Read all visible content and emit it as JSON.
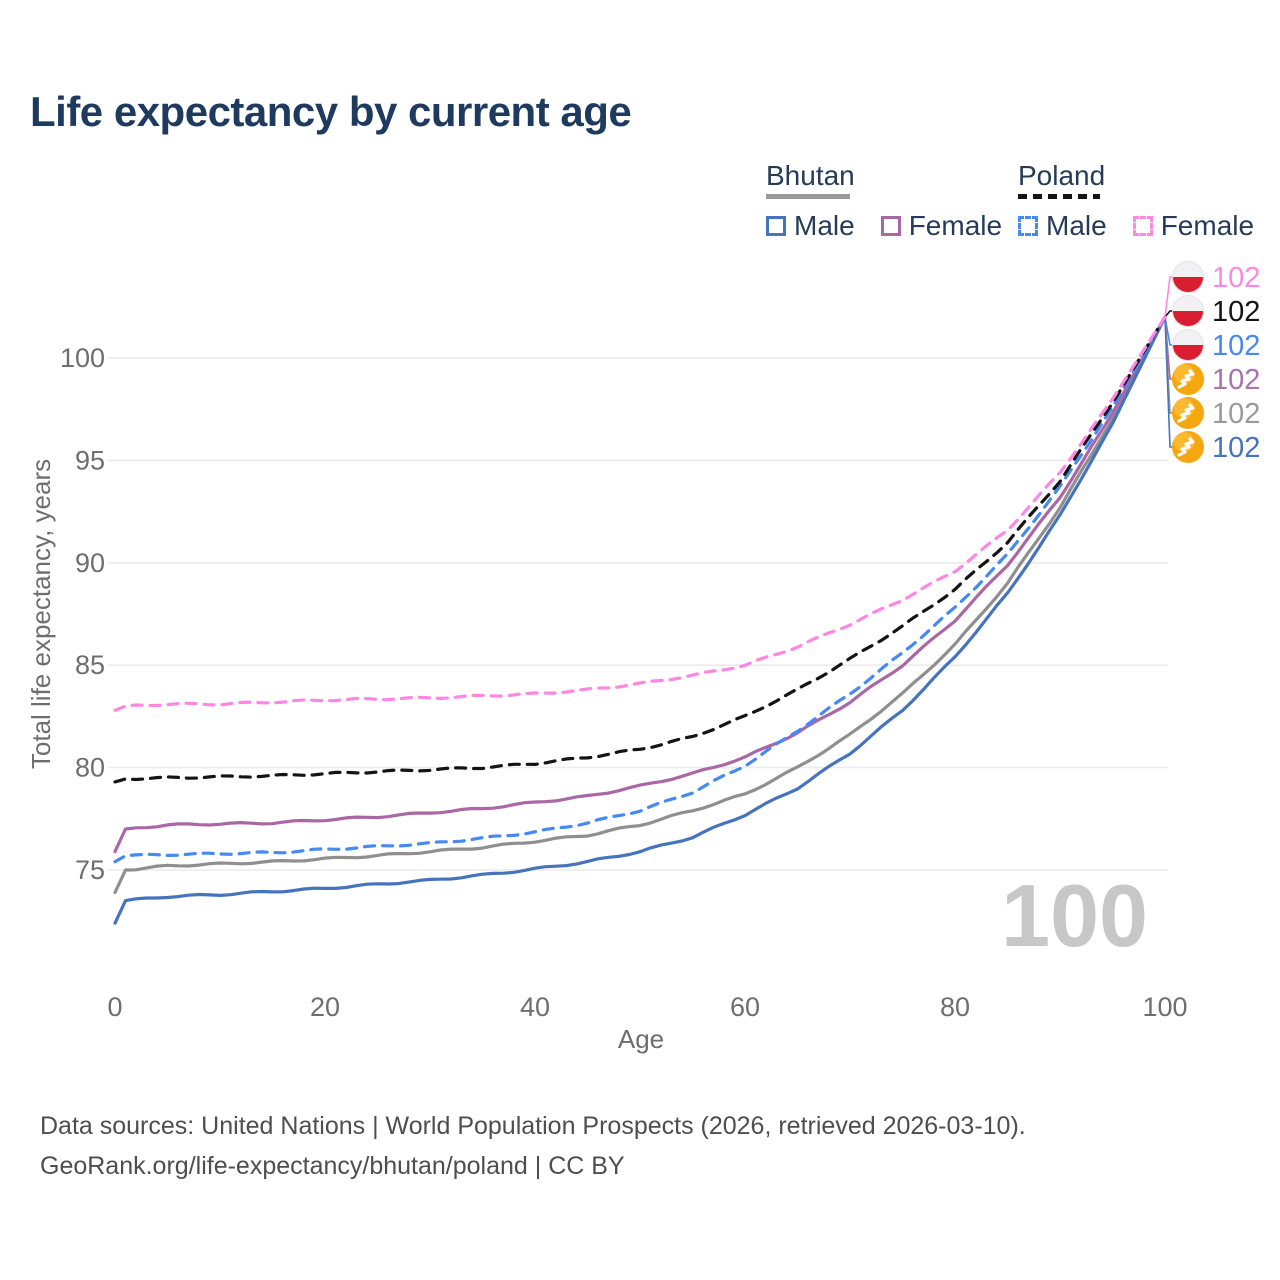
{
  "title": "Life expectancy by current age",
  "legend": {
    "groups": [
      {
        "label": "Bhutan",
        "style": "solid",
        "items": [
          {
            "label": "Male",
            "color": "#4673bd"
          },
          {
            "label": "Female",
            "color": "#ab67a5"
          }
        ]
      },
      {
        "label": "Poland",
        "style": "dashed",
        "items": [
          {
            "label": "Male",
            "color": "#4589f5"
          },
          {
            "label": "Female",
            "color": "#ff87e3"
          }
        ]
      }
    ]
  },
  "watermark": "100",
  "footer": {
    "line1": "Data sources: United Nations | World Population Prospects (2026, retrieved 2026-03-10).",
    "line2": "GeoRank.org/life-expectancy/bhutan/poland | CC BY"
  },
  "chart_data": {
    "type": "line",
    "title": "Life expectancy by current age",
    "xlabel": "Age",
    "ylabel": "Total life expectancy, years",
    "x_ticks": [
      0,
      20,
      40,
      60,
      80,
      100
    ],
    "y_ticks": [
      75,
      80,
      85,
      90,
      95,
      100
    ],
    "xlim": [
      0,
      100
    ],
    "ylim": [
      71.5,
      103.5
    ],
    "grid": true,
    "legend_position": "top-right",
    "series": [
      {
        "name": "Poland Female",
        "country": "poland",
        "sex": "female",
        "flag": "poland",
        "color": "#ff87e3",
        "dashed": true,
        "end_label": "102",
        "end_label_color": "#ff87e3",
        "points": [
          [
            0,
            82.8
          ],
          [
            1,
            83.0
          ],
          [
            5,
            83.1
          ],
          [
            10,
            83.1
          ],
          [
            15,
            83.2
          ],
          [
            20,
            83.3
          ],
          [
            25,
            83.35
          ],
          [
            30,
            83.4
          ],
          [
            35,
            83.5
          ],
          [
            40,
            83.6
          ],
          [
            45,
            83.8
          ],
          [
            50,
            84.1
          ],
          [
            55,
            84.5
          ],
          [
            60,
            85.0
          ],
          [
            65,
            85.9
          ],
          [
            70,
            87.0
          ],
          [
            75,
            88.2
          ],
          [
            80,
            89.6
          ],
          [
            85,
            91.6
          ],
          [
            90,
            94.4
          ],
          [
            95,
            98.0
          ],
          [
            100,
            102
          ]
        ]
      },
      {
        "name": "Poland Total",
        "country": "poland",
        "sex": "total",
        "flag": "poland",
        "color": "#141414",
        "dashed": true,
        "end_label": "102",
        "end_label_color": "#141414",
        "points": [
          [
            0,
            79.3
          ],
          [
            1,
            79.45
          ],
          [
            5,
            79.5
          ],
          [
            10,
            79.55
          ],
          [
            15,
            79.6
          ],
          [
            20,
            79.7
          ],
          [
            25,
            79.8
          ],
          [
            30,
            79.9
          ],
          [
            35,
            80.0
          ],
          [
            40,
            80.2
          ],
          [
            45,
            80.5
          ],
          [
            50,
            80.9
          ],
          [
            55,
            81.5
          ],
          [
            60,
            82.5
          ],
          [
            65,
            83.8
          ],
          [
            70,
            85.3
          ],
          [
            75,
            86.9
          ],
          [
            80,
            88.7
          ],
          [
            85,
            91.0
          ],
          [
            90,
            94.0
          ],
          [
            95,
            97.8
          ],
          [
            100,
            102
          ]
        ]
      },
      {
        "name": "Poland Male",
        "country": "poland",
        "sex": "male",
        "flag": "poland",
        "color": "#4589f5",
        "dashed": true,
        "end_label": "102",
        "end_label_color": "#4589f5",
        "points": [
          [
            0,
            75.4
          ],
          [
            1,
            75.7
          ],
          [
            5,
            75.75
          ],
          [
            10,
            75.8
          ],
          [
            15,
            75.85
          ],
          [
            20,
            76.0
          ],
          [
            25,
            76.15
          ],
          [
            30,
            76.3
          ],
          [
            35,
            76.55
          ],
          [
            40,
            76.85
          ],
          [
            45,
            77.3
          ],
          [
            50,
            77.9
          ],
          [
            55,
            78.8
          ],
          [
            60,
            80.1
          ],
          [
            65,
            81.8
          ],
          [
            70,
            83.6
          ],
          [
            75,
            85.6
          ],
          [
            80,
            87.8
          ],
          [
            85,
            90.4
          ],
          [
            90,
            93.7
          ],
          [
            95,
            97.6
          ],
          [
            100,
            102
          ]
        ]
      },
      {
        "name": "Bhutan Female",
        "country": "bhutan",
        "sex": "female",
        "flag": "bhutan",
        "color": "#ab67a5",
        "dashed": false,
        "end_label": "102",
        "end_label_color": "#a974ab",
        "points": [
          [
            0,
            75.9
          ],
          [
            1,
            77.0
          ],
          [
            5,
            77.2
          ],
          [
            10,
            77.25
          ],
          [
            15,
            77.3
          ],
          [
            20,
            77.45
          ],
          [
            25,
            77.6
          ],
          [
            30,
            77.8
          ],
          [
            35,
            78.0
          ],
          [
            40,
            78.3
          ],
          [
            45,
            78.6
          ],
          [
            50,
            79.1
          ],
          [
            55,
            79.7
          ],
          [
            60,
            80.5
          ],
          [
            65,
            81.7
          ],
          [
            70,
            83.2
          ],
          [
            75,
            85.0
          ],
          [
            80,
            87.2
          ],
          [
            85,
            89.9
          ],
          [
            90,
            93.2
          ],
          [
            95,
            97.3
          ],
          [
            100,
            102
          ]
        ]
      },
      {
        "name": "Bhutan Total",
        "country": "bhutan",
        "sex": "total",
        "flag": "bhutan",
        "color": "#8f8f8f",
        "dashed": false,
        "end_label": "102",
        "end_label_color": "#9a9a9a",
        "points": [
          [
            0,
            73.9
          ],
          [
            1,
            75.0
          ],
          [
            5,
            75.2
          ],
          [
            10,
            75.3
          ],
          [
            15,
            75.4
          ],
          [
            20,
            75.55
          ],
          [
            25,
            75.7
          ],
          [
            30,
            75.9
          ],
          [
            35,
            76.1
          ],
          [
            40,
            76.4
          ],
          [
            45,
            76.7
          ],
          [
            50,
            77.2
          ],
          [
            55,
            77.9
          ],
          [
            60,
            78.7
          ],
          [
            65,
            80.0
          ],
          [
            70,
            81.6
          ],
          [
            75,
            83.6
          ],
          [
            80,
            86.0
          ],
          [
            85,
            89.0
          ],
          [
            90,
            92.7
          ],
          [
            95,
            97.0
          ],
          [
            100,
            102
          ]
        ]
      },
      {
        "name": "Bhutan Male",
        "country": "bhutan",
        "sex": "male",
        "flag": "bhutan",
        "color": "#4673bd",
        "dashed": false,
        "end_label": "102",
        "end_label_color": "#4673bd",
        "points": [
          [
            0,
            72.4
          ],
          [
            1,
            73.5
          ],
          [
            5,
            73.7
          ],
          [
            10,
            73.8
          ],
          [
            15,
            73.95
          ],
          [
            20,
            74.1
          ],
          [
            25,
            74.3
          ],
          [
            30,
            74.5
          ],
          [
            35,
            74.75
          ],
          [
            40,
            75.05
          ],
          [
            45,
            75.4
          ],
          [
            50,
            75.9
          ],
          [
            55,
            76.6
          ],
          [
            60,
            77.7
          ],
          [
            65,
            79.0
          ],
          [
            70,
            80.7
          ],
          [
            75,
            82.8
          ],
          [
            80,
            85.4
          ],
          [
            85,
            88.5
          ],
          [
            90,
            92.3
          ],
          [
            95,
            96.8
          ],
          [
            100,
            102
          ]
        ]
      }
    ]
  }
}
